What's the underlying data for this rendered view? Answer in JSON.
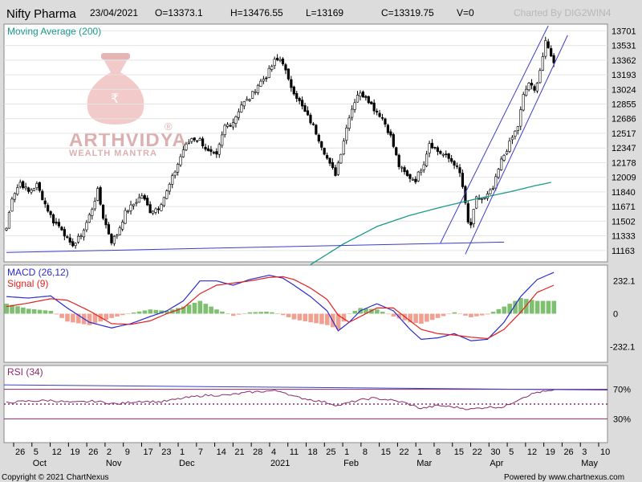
{
  "header": {
    "symbol": "Nifty Pharma",
    "date": "23/04/2021",
    "open": "O=13373.1",
    "high": "H=13476.55",
    "low": "L=13169",
    "close": "C=13319.75",
    "volume": "V=0",
    "charted_by": "Charted By DIG2WIN4"
  },
  "logo": {
    "name": "ARTHVIDYA",
    "registered": "®",
    "tagline": "WEALTH MANTRA",
    "bag_symbol": "₹"
  },
  "footer": {
    "copyright": "Copyright © 2021 ChartNexus",
    "powered_by": "Powered by www.chartnexus.com"
  },
  "colors": {
    "up": "#ffffff",
    "down": "#000000",
    "ma": "#1a9a8c",
    "trendline": "#3c3cc8",
    "macd": "#2a2ad0",
    "signal": "#e02020",
    "hist_pos": "#7fc070",
    "hist_neg": "#f0a090",
    "rsi": "#8a2a6a"
  },
  "chart_data": [
    {
      "type": "candlestick",
      "title": "Nifty Pharma",
      "legend": [
        "Moving Average (200)"
      ],
      "yticks": [
        11163,
        11333,
        11502,
        11671,
        11840,
        12009,
        12178,
        12347,
        12517,
        12686,
        12855,
        13024,
        13193,
        13362,
        13531,
        13701
      ],
      "ylim": [
        11050,
        13760
      ],
      "x_day_ticks": [
        "26",
        "5",
        "12",
        "19",
        "26",
        "2",
        "9",
        "17",
        "23",
        "1",
        "7",
        "14",
        "21",
        "28",
        "4",
        "11",
        "18",
        "25",
        "1",
        "8",
        "15",
        "22",
        "1",
        "8",
        "15",
        "22",
        "30",
        "5",
        "12",
        "19",
        "26",
        "3",
        "10"
      ],
      "x_month_labels": [
        "Oct",
        "Nov",
        "Dec",
        "2021",
        "Feb",
        "Mar",
        "Apr",
        "May"
      ],
      "anchors": [
        [
          0,
          11420
        ],
        [
          2,
          11780
        ],
        [
          5,
          11950
        ],
        [
          8,
          11840
        ],
        [
          11,
          11920
        ],
        [
          14,
          11700
        ],
        [
          17,
          11500
        ],
        [
          20,
          11420
        ],
        [
          23,
          11230
        ],
        [
          25,
          11250
        ],
        [
          28,
          11400
        ],
        [
          31,
          11650
        ],
        [
          33,
          11850
        ],
        [
          35,
          11550
        ],
        [
          38,
          11270
        ],
        [
          40,
          11350
        ],
        [
          43,
          11600
        ],
        [
          46,
          11700
        ],
        [
          49,
          11800
        ],
        [
          52,
          11620
        ],
        [
          55,
          11660
        ],
        [
          58,
          11840
        ],
        [
          61,
          12080
        ],
        [
          64,
          12330
        ],
        [
          67,
          12460
        ],
        [
          70,
          12440
        ],
        [
          73,
          12300
        ],
        [
          76,
          12250
        ],
        [
          79,
          12600
        ],
        [
          82,
          12650
        ],
        [
          85,
          12850
        ],
        [
          88,
          12920
        ],
        [
          91,
          13080
        ],
        [
          94,
          13180
        ],
        [
          97,
          13350
        ],
        [
          99,
          13370
        ],
        [
          100,
          13340
        ],
        [
          102,
          13120
        ],
        [
          105,
          12940
        ],
        [
          108,
          12760
        ],
        [
          111,
          12600
        ],
        [
          114,
          12380
        ],
        [
          117,
          12150
        ],
        [
          119,
          12050
        ],
        [
          121,
          12300
        ],
        [
          124,
          12720
        ],
        [
          127,
          12970
        ],
        [
          130,
          12950
        ],
        [
          133,
          12800
        ],
        [
          136,
          12700
        ],
        [
          139,
          12480
        ],
        [
          142,
          12140
        ],
        [
          145,
          12020
        ],
        [
          148,
          11980
        ],
        [
          151,
          12180
        ],
        [
          153,
          12410
        ],
        [
          156,
          12310
        ],
        [
          159,
          12250
        ],
        [
          162,
          12170
        ],
        [
          164,
          12050
        ],
        [
          165,
          11900
        ],
        [
          167,
          11480
        ],
        [
          168,
          11460
        ],
        [
          170,
          11760
        ],
        [
          173,
          11760
        ],
        [
          176,
          11880
        ],
        [
          179,
          12200
        ],
        [
          182,
          12400
        ],
        [
          185,
          12600
        ],
        [
          187,
          12950
        ],
        [
          189,
          13100
        ],
        [
          191,
          13000
        ],
        [
          193,
          13250
        ],
        [
          195,
          13560
        ],
        [
          197,
          13430
        ],
        [
          198,
          13320
        ]
      ],
      "ma200_anchors": [
        [
          110,
          11000
        ],
        [
          122,
          11240
        ],
        [
          134,
          11440
        ],
        [
          146,
          11570
        ],
        [
          158,
          11670
        ],
        [
          170,
          11760
        ],
        [
          182,
          11840
        ],
        [
          191,
          11910
        ],
        [
          197,
          11950
        ]
      ],
      "trendlines": [
        {
          "from": [
            0,
            11140
          ],
          "to": [
            180,
            11260
          ]
        },
        {
          "from": [
            157,
            11250
          ],
          "to": [
            196,
            13760
          ]
        },
        {
          "from": [
            166,
            11120
          ],
          "to": [
            203,
            13650
          ]
        }
      ]
    },
    {
      "type": "bar+line",
      "title": "MACD (26,12)",
      "series": [
        {
          "name": "MACD (26,12)"
        },
        {
          "name": "Signal (9)"
        }
      ],
      "yticks": [
        232.1,
        0,
        -232.1
      ],
      "ylim": [
        -330,
        330
      ],
      "macd_anchors": [
        [
          0,
          120
        ],
        [
          8,
          110
        ],
        [
          16,
          125
        ],
        [
          22,
          40
        ],
        [
          30,
          -60
        ],
        [
          38,
          -100
        ],
        [
          45,
          -70
        ],
        [
          52,
          -20
        ],
        [
          58,
          20
        ],
        [
          64,
          90
        ],
        [
          70,
          230
        ],
        [
          76,
          230
        ],
        [
          82,
          200
        ],
        [
          88,
          240
        ],
        [
          95,
          270
        ],
        [
          100,
          250
        ],
        [
          104,
          200
        ],
        [
          110,
          120
        ],
        [
          116,
          20
        ],
        [
          120,
          -120
        ],
        [
          124,
          -60
        ],
        [
          128,
          20
        ],
        [
          134,
          70
        ],
        [
          140,
          20
        ],
        [
          146,
          -110
        ],
        [
          150,
          -180
        ],
        [
          156,
          -170
        ],
        [
          162,
          -140
        ],
        [
          168,
          -190
        ],
        [
          174,
          -180
        ],
        [
          180,
          -60
        ],
        [
          186,
          120
        ],
        [
          192,
          240
        ],
        [
          198,
          290
        ]
      ],
      "signal_anchors": [
        [
          0,
          50
        ],
        [
          8,
          75
        ],
        [
          16,
          105
        ],
        [
          22,
          95
        ],
        [
          30,
          20
        ],
        [
          38,
          -70
        ],
        [
          45,
          -75
        ],
        [
          52,
          -50
        ],
        [
          58,
          0
        ],
        [
          64,
          40
        ],
        [
          70,
          140
        ],
        [
          76,
          200
        ],
        [
          82,
          215
        ],
        [
          88,
          230
        ],
        [
          95,
          255
        ],
        [
          100,
          260
        ],
        [
          104,
          240
        ],
        [
          110,
          180
        ],
        [
          116,
          100
        ],
        [
          120,
          -10
        ],
        [
          124,
          -60
        ],
        [
          128,
          -20
        ],
        [
          134,
          40
        ],
        [
          140,
          40
        ],
        [
          146,
          -50
        ],
        [
          150,
          -110
        ],
        [
          156,
          -140
        ],
        [
          162,
          -150
        ],
        [
          168,
          -165
        ],
        [
          174,
          -175
        ],
        [
          180,
          -110
        ],
        [
          186,
          10
        ],
        [
          192,
          150
        ],
        [
          198,
          200
        ]
      ]
    },
    {
      "type": "line",
      "title": "RSI (34)",
      "yticks": [
        "70%",
        "30%"
      ],
      "ylim": [
        0,
        100
      ],
      "rsi_anchors": [
        [
          0,
          52
        ],
        [
          8,
          54
        ],
        [
          16,
          55
        ],
        [
          24,
          52
        ],
        [
          32,
          54
        ],
        [
          40,
          50
        ],
        [
          48,
          54
        ],
        [
          56,
          53
        ],
        [
          64,
          58
        ],
        [
          72,
          62
        ],
        [
          80,
          62
        ],
        [
          88,
          66
        ],
        [
          96,
          68
        ],
        [
          100,
          67
        ],
        [
          104,
          60
        ],
        [
          110,
          56
        ],
        [
          116,
          52
        ],
        [
          120,
          48
        ],
        [
          126,
          54
        ],
        [
          132,
          58
        ],
        [
          138,
          56
        ],
        [
          144,
          52
        ],
        [
          150,
          44
        ],
        [
          156,
          48
        ],
        [
          162,
          46
        ],
        [
          168,
          43
        ],
        [
          174,
          46
        ],
        [
          180,
          46
        ],
        [
          186,
          58
        ],
        [
          192,
          66
        ],
        [
          198,
          68
        ]
      ],
      "guides": [
        70,
        50,
        30
      ]
    }
  ]
}
